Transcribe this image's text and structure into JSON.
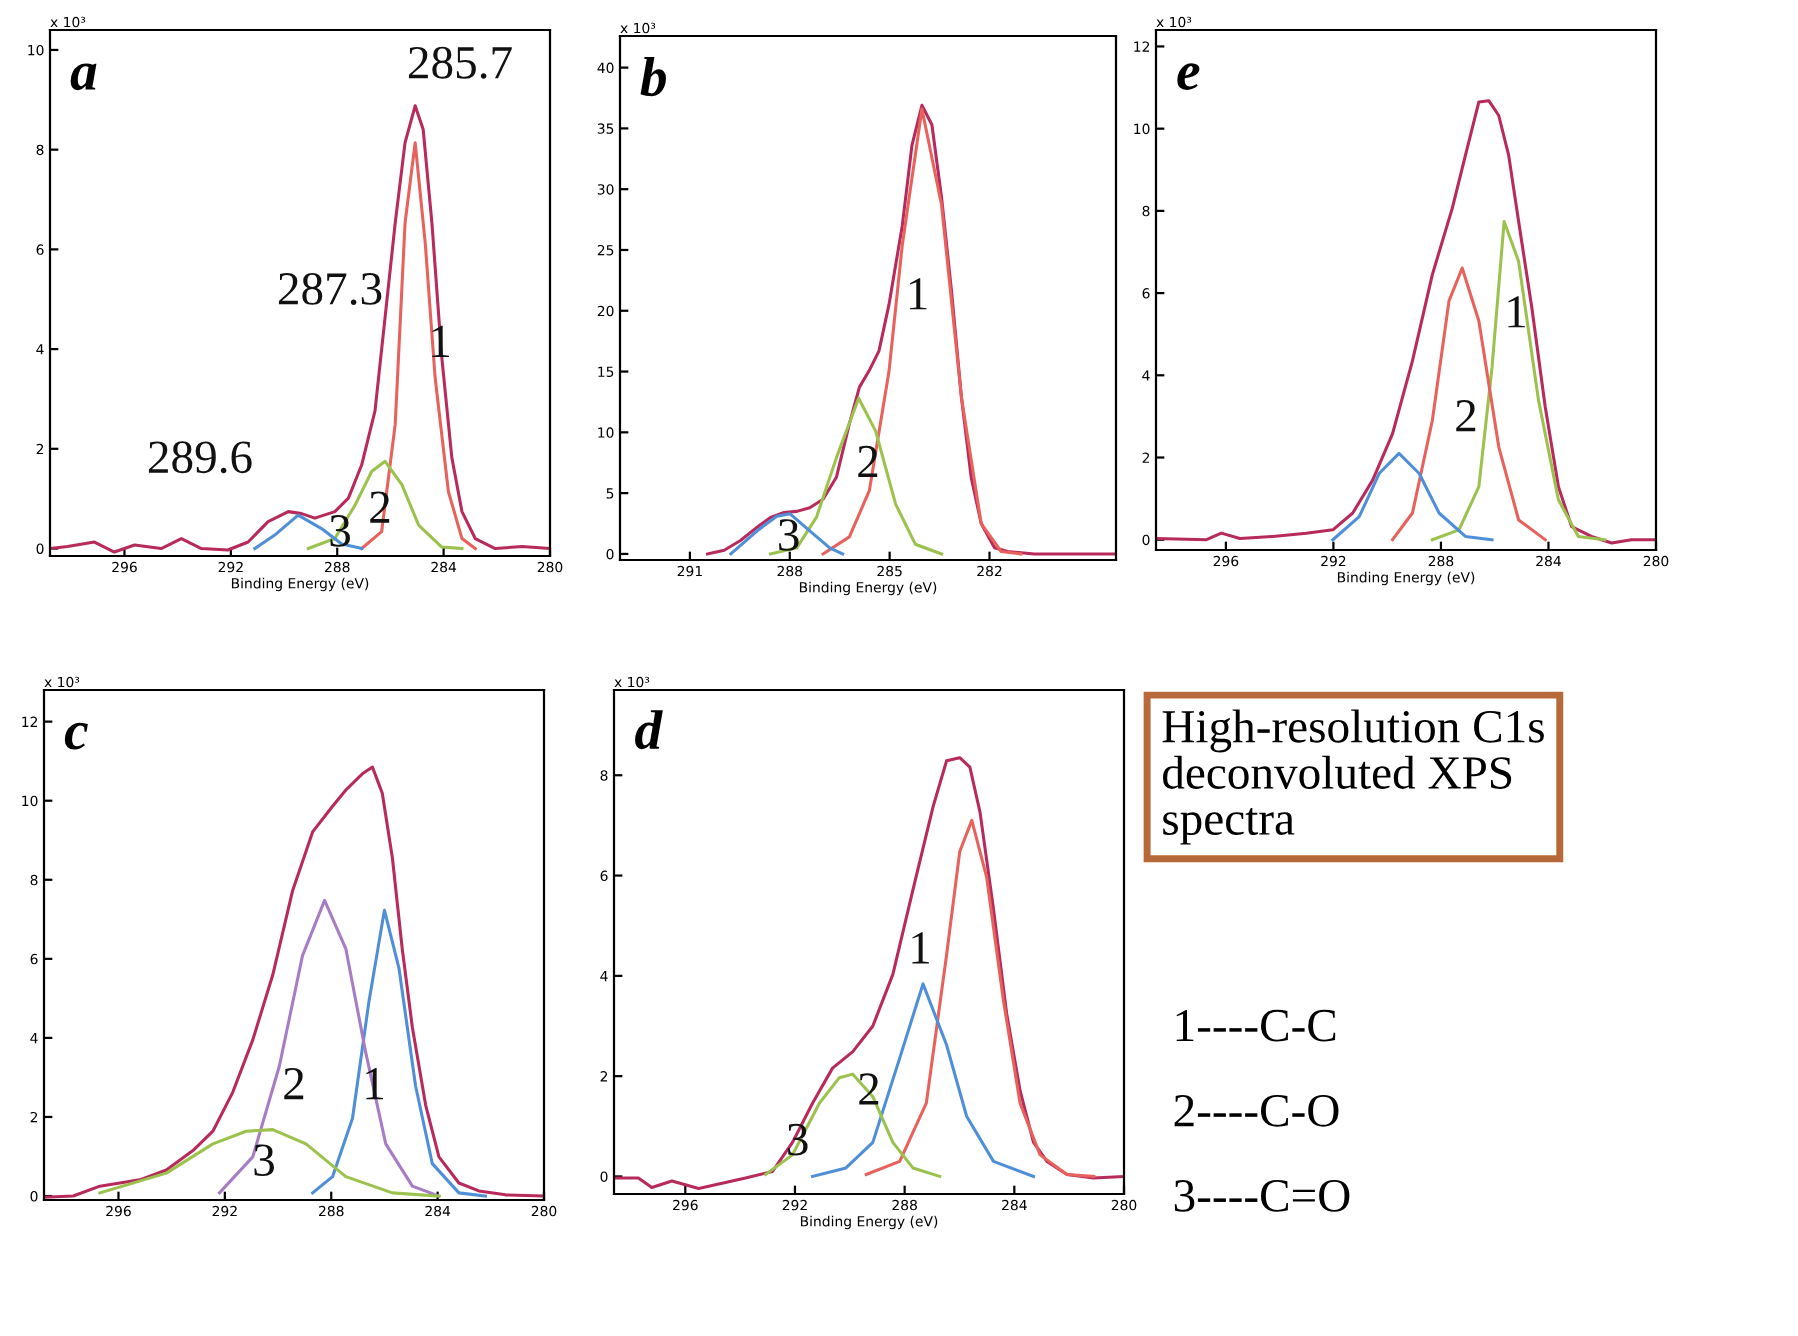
{
  "chart_data": [
    {
      "type": "line",
      "title": "a",
      "xlabel": "Binding Energy (eV)",
      "ylabel": "x 10³",
      "xlim": [
        298.8,
        280
      ],
      "xticks": [
        296,
        292,
        288,
        284,
        280
      ],
      "ylim": [
        -0.15,
        10.4
      ],
      "yticks": [
        0,
        2,
        4,
        6,
        8,
        10
      ],
      "series": [
        {
          "color": "#b82a5c",
          "x": [
            298.8,
            298.14,
            297.13,
            296.38,
            295.62,
            294.62,
            293.86,
            293.11,
            292.11,
            291.35,
            290.6,
            289.84,
            289.34,
            288.84,
            288.09,
            287.58,
            287.08,
            286.58,
            286.2,
            285.82,
            285.45,
            285.07,
            284.77,
            284.44,
            284.07,
            283.69,
            283.31,
            282.81,
            282.06,
            281.05,
            280.0
          ],
          "values": [
            0,
            0.04,
            0.13,
            -0.07,
            0.07,
            0,
            0.2,
            0,
            -0.03,
            0.13,
            0.54,
            0.74,
            0.7,
            0.61,
            0.74,
            1.01,
            1.68,
            2.76,
            4.64,
            6.53,
            8.14,
            8.88,
            8.41,
            6.53,
            3.84,
            1.82,
            0.74,
            0.2,
            0,
            0.04,
            0
          ]
        },
        {
          "color": "#e8625c",
          "x": [
            287.08,
            286.33,
            285.82,
            285.45,
            285.07,
            284.69,
            284.32,
            283.82,
            283.31,
            282.81
          ],
          "values": [
            0,
            0.34,
            2.49,
            6.53,
            8.14,
            6.12,
            3.43,
            1.14,
            0.2,
            0
          ]
        },
        {
          "color": "#9cc24e",
          "x": [
            289.09,
            288.09,
            287.33,
            286.7,
            286.2,
            285.57,
            284.94,
            284.07,
            283.31
          ],
          "values": [
            0,
            0.2,
            0.87,
            1.55,
            1.75,
            1.28,
            0.47,
            0.03,
            0
          ]
        },
        {
          "color": "#4f8fd8",
          "x": [
            291.1,
            290.35,
            289.47,
            288.59,
            287.83,
            287.08
          ],
          "values": [
            0,
            0.27,
            0.67,
            0.4,
            0.09,
            0
          ]
        }
      ],
      "annotations": [
        "285.7",
        "287.3",
        "289.6",
        "1",
        "2",
        "3"
      ]
    },
    {
      "type": "line",
      "title": "b",
      "xlabel": "Binding Energy (eV)",
      "ylabel": "x 10³",
      "xlim": [
        293.1,
        278.2
      ],
      "xticks": [
        291,
        288,
        285,
        282
      ],
      "ylim": [
        -0.5,
        42.6
      ],
      "yticks": [
        0,
        5,
        10,
        15,
        20,
        25,
        30,
        35,
        40
      ],
      "series": [
        {
          "color": "#b82a5c",
          "x": [
            290.47,
            289.97,
            289.48,
            288.98,
            288.58,
            288.19,
            287.79,
            287.4,
            287.0,
            286.6,
            286.21,
            285.91,
            285.61,
            285.32,
            285.02,
            284.62,
            284.33,
            284.03,
            283.73,
            283.44,
            283.14,
            282.84,
            282.55,
            282.25,
            281.85,
            281.46,
            280.66,
            278.25
          ],
          "values": [
            0,
            0.3,
            1.1,
            2.2,
            3.0,
            3.4,
            3.5,
            3.8,
            4.5,
            6.3,
            10.7,
            13.7,
            15.1,
            16.7,
            20.5,
            27.0,
            33.6,
            36.9,
            35.3,
            29.3,
            21.6,
            12.8,
            6.3,
            2.5,
            0.5,
            0.2,
            0,
            0
          ]
        },
        {
          "color": "#e8625c",
          "x": [
            287.0,
            286.21,
            285.61,
            285.02,
            284.62,
            284.03,
            283.44,
            282.84,
            282.25,
            281.65,
            281.06
          ],
          "values": [
            0,
            1.4,
            5.2,
            15.0,
            25.4,
            36.6,
            28.7,
            12.8,
            2.5,
            0.2,
            0
          ]
        },
        {
          "color": "#9cc24e",
          "x": [
            288.58,
            287.79,
            287.2,
            286.6,
            285.93,
            285.42,
            284.82,
            284.23,
            283.44
          ],
          "values": [
            0,
            0.5,
            3.0,
            7.9,
            12.8,
            10.1,
            4.1,
            0.8,
            0
          ]
        },
        {
          "color": "#4f8fd8",
          "x": [
            289.77,
            288.98,
            288.39,
            287.99,
            287.4,
            286.8,
            286.41
          ],
          "values": [
            0,
            1.9,
            3.1,
            3.3,
            1.9,
            0.5,
            0
          ]
        }
      ],
      "annotations": [
        "1",
        "2",
        "3"
      ]
    },
    {
      "type": "line",
      "title": "e",
      "xlabel": "Binding Energy (eV)",
      "ylabel": "x 10³",
      "xlim": [
        298.6,
        280
      ],
      "xticks": [
        296,
        292,
        288,
        284,
        280
      ],
      "ylim": [
        -0.25,
        12.4
      ],
      "yticks": [
        0,
        2,
        4,
        6,
        8,
        10,
        12
      ],
      "series": [
        {
          "color": "#b82a5c",
          "x": [
            298.57,
            296.72,
            296.17,
            295.48,
            294.25,
            293.01,
            292.02,
            291.28,
            290.54,
            289.8,
            289.06,
            288.32,
            287.58,
            287.09,
            286.59,
            286.22,
            285.85,
            285.48,
            285.11,
            284.62,
            284.12,
            283.63,
            283.14,
            282.4,
            281.65,
            280.91,
            280.0
          ],
          "values": [
            0.03,
            0,
            0.16,
            0.03,
            0.08,
            0.16,
            0.24,
            0.65,
            1.45,
            2.58,
            4.35,
            6.45,
            8.06,
            9.35,
            10.65,
            10.68,
            10.32,
            9.35,
            7.74,
            5.65,
            3.23,
            1.29,
            0.32,
            0.08,
            -0.08,
            0,
            0
          ]
        },
        {
          "color": "#9cc24e",
          "x": [
            288.32,
            287.33,
            286.59,
            286.1,
            285.65,
            285.11,
            284.37,
            283.63,
            282.89,
            281.9
          ],
          "values": [
            0,
            0.24,
            1.29,
            4.19,
            7.74,
            6.77,
            3.39,
            0.97,
            0.08,
            0
          ]
        },
        {
          "color": "#e8625c",
          "x": [
            289.8,
            289.06,
            288.32,
            287.7,
            287.21,
            286.59,
            285.85,
            285.11,
            284.12
          ],
          "values": [
            0,
            0.65,
            2.9,
            5.81,
            6.61,
            5.32,
            2.26,
            0.48,
            0
          ]
        },
        {
          "color": "#4f8fd8",
          "x": [
            292.02,
            291.04,
            290.3,
            289.56,
            288.81,
            288.07,
            287.09,
            286.1
          ],
          "values": [
            0,
            0.56,
            1.61,
            2.1,
            1.61,
            0.65,
            0.08,
            0
          ]
        }
      ],
      "annotations": [
        "1",
        "2"
      ]
    },
    {
      "type": "line",
      "title": "c",
      "ylabel": "x 10³",
      "xlim": [
        298.8,
        280
      ],
      "xticks": [
        296,
        292,
        288,
        284,
        280
      ],
      "ylim": [
        -0.1,
        12.8
      ],
      "yticks": [
        0,
        2,
        4,
        6,
        8,
        10,
        12
      ],
      "series": [
        {
          "color": "#b82a5c",
          "x": [
            298.8,
            297.7,
            296.7,
            295.95,
            295.2,
            294.2,
            293.2,
            292.45,
            291.7,
            290.95,
            290.2,
            289.45,
            288.7,
            287.95,
            287.45,
            286.83,
            286.45,
            286.08,
            285.7,
            285.33,
            284.95,
            284.45,
            283.95,
            283.2,
            282.45,
            281.45,
            280.0
          ],
          "values": [
            -0.03,
            0,
            0.25,
            0.33,
            0.41,
            0.66,
            1.15,
            1.64,
            2.63,
            3.95,
            5.59,
            7.73,
            9.21,
            9.86,
            10.27,
            10.68,
            10.85,
            10.19,
            8.55,
            6.25,
            4.27,
            2.3,
            0.99,
            0.33,
            0.13,
            0.03,
            0
          ]
        },
        {
          "color": "#4f8fd8",
          "x": [
            288.7,
            287.95,
            287.2,
            286.58,
            286.0,
            285.45,
            284.83,
            284.2,
            283.2,
            282.2
          ],
          "values": [
            0.08,
            0.49,
            1.97,
            4.93,
            7.23,
            5.75,
            2.79,
            0.82,
            0.08,
            0
          ]
        },
        {
          "color": "#a77cc4",
          "x": [
            292.2,
            290.95,
            289.95,
            289.08,
            288.25,
            287.45,
            286.7,
            285.95,
            284.95,
            283.95
          ],
          "values": [
            0.08,
            0.99,
            3.29,
            6.08,
            7.48,
            6.25,
            3.62,
            1.32,
            0.25,
            0
          ]
        },
        {
          "color": "#9cc24e",
          "x": [
            296.7,
            294.2,
            292.45,
            291.2,
            290.2,
            288.95,
            287.45,
            285.7,
            283.95
          ],
          "values": [
            0.08,
            0.58,
            1.32,
            1.64,
            1.68,
            1.32,
            0.49,
            0.08,
            0
          ]
        }
      ],
      "annotations": [
        "1",
        "2",
        "3"
      ]
    },
    {
      "type": "line",
      "title": "d",
      "xlabel": "Binding Energy (eV)",
      "ylabel": "x 10³",
      "xlim": [
        298.6,
        280
      ],
      "xticks": [
        296,
        292,
        288,
        284,
        280
      ],
      "ylim": [
        -0.35,
        9.7
      ],
      "yticks": [
        0,
        2,
        4,
        6,
        8
      ],
      "series": [
        {
          "color": "#b82a5c",
          "x": [
            298.6,
            297.71,
            297.22,
            296.49,
            295.51,
            294.78,
            293.8,
            292.82,
            292.09,
            291.36,
            290.63,
            289.89,
            289.16,
            288.43,
            287.7,
            286.96,
            286.47,
            285.99,
            285.62,
            285.25,
            284.76,
            284.28,
            283.79,
            283.3,
            282.81,
            282.08,
            281.1,
            280.0
          ],
          "values": [
            -0.03,
            -0.03,
            -0.22,
            -0.09,
            -0.24,
            -0.15,
            -0.03,
            0.1,
            0.68,
            1.46,
            2.16,
            2.49,
            3.0,
            4.03,
            5.71,
            7.38,
            8.29,
            8.35,
            8.16,
            7.26,
            5.33,
            3.25,
            1.71,
            0.68,
            0.3,
            0.04,
            -0.03,
            0
          ]
        },
        {
          "color": "#e8625c",
          "x": [
            289.4,
            288.18,
            287.21,
            286.47,
            285.99,
            285.55,
            285.01,
            284.4,
            283.79,
            283.06,
            282.08,
            281.1
          ],
          "values": [
            0.04,
            0.3,
            1.46,
            4.42,
            6.48,
            7.1,
            5.97,
            3.52,
            1.46,
            0.43,
            0.04,
            0
          ]
        },
        {
          "color": "#4f8fd8",
          "x": [
            291.36,
            290.14,
            289.16,
            288.18,
            287.33,
            286.47,
            285.74,
            284.76,
            283.3
          ],
          "values": [
            0,
            0.17,
            0.68,
            2.36,
            3.84,
            2.62,
            1.2,
            0.3,
            0
          ]
        },
        {
          "color": "#9cc24e",
          "x": [
            293.07,
            292.09,
            291.11,
            290.38,
            289.89,
            289.16,
            288.43,
            287.7,
            286.72
          ],
          "values": [
            0.04,
            0.43,
            1.46,
            1.97,
            2.04,
            1.59,
            0.68,
            0.17,
            0
          ]
        }
      ],
      "annotations": [
        "1",
        "2",
        "3"
      ]
    },
    {
      "type": "other",
      "title": "High-resolution C1s\ndeconvoluted XPS\nspectra",
      "annotations": [
        "1----C-C",
        "2----C-O",
        "3----C=O"
      ]
    }
  ]
}
